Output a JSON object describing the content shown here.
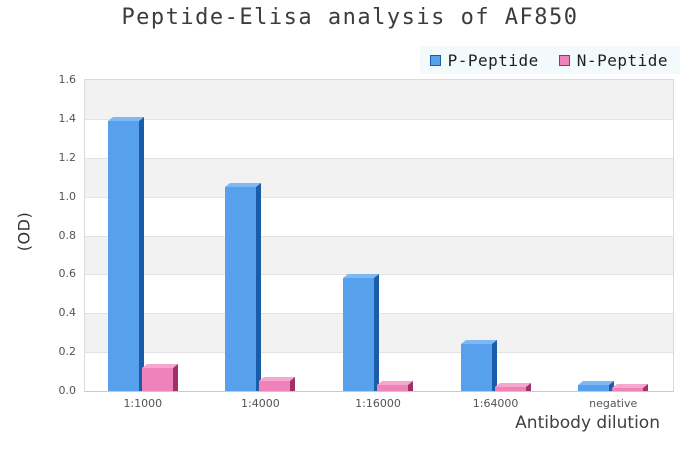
{
  "title": "Peptide-Elisa analysis of AF850",
  "legend": {
    "position": "top-right",
    "items": [
      {
        "label": "P-Peptide",
        "swatch_icon": "blue-square-icon"
      },
      {
        "label": "N-Peptide",
        "swatch_icon": "pink-square-icon"
      }
    ]
  },
  "chart_data": {
    "type": "bar",
    "title": "Peptide-Elisa analysis of AF850",
    "categories": [
      "1:1000",
      "1:4000",
      "1:16000",
      "1:64000",
      "negative"
    ],
    "series": [
      {
        "name": "P-Peptide",
        "color": "#57a0ec",
        "side_color": "#1a5ca8",
        "top_color": "#7cb9f5",
        "values": [
          1.39,
          1.05,
          0.58,
          0.24,
          0.03
        ]
      },
      {
        "name": "N-Peptide",
        "color": "#ef82b8",
        "side_color": "#9d3168",
        "top_color": "#f7a6cd",
        "values": [
          0.12,
          0.05,
          0.03,
          0.02,
          0.015
        ]
      }
    ],
    "xlabel": "Antibody dilution",
    "ylabel": "(OD)",
    "ylim": [
      0,
      1.6
    ],
    "yticks": [
      "0.0",
      "0.2",
      "0.4",
      "0.6",
      "0.8",
      "1.0",
      "1.2",
      "1.4",
      "1.6"
    ],
    "grid": "horizontal-bands-alternating-gray-white",
    "band_gray": "#f2f2f2",
    "band_white": "#ffffff",
    "legend_position": "top-right",
    "style": "3d-effect-bars"
  }
}
